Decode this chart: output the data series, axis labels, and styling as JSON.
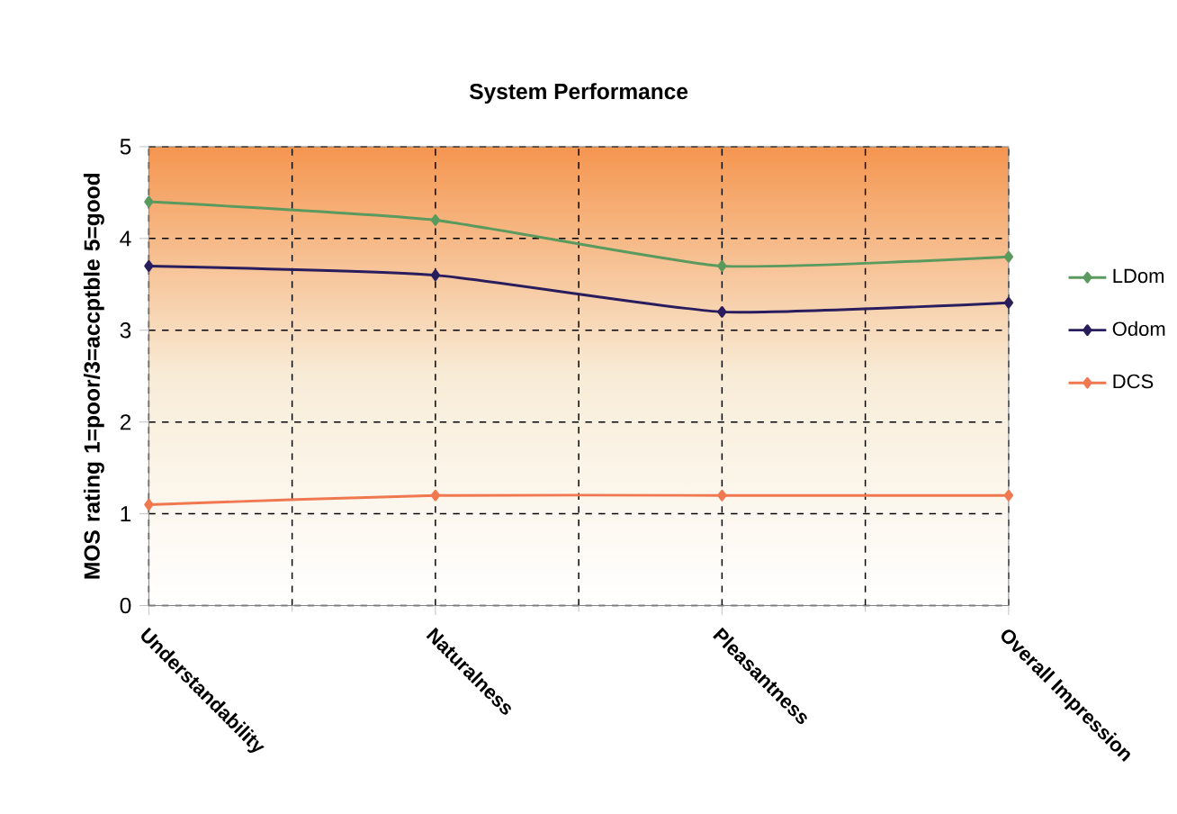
{
  "chart_data": {
    "type": "line",
    "title": "System Performance",
    "ylabel": "MOS rating 1=poor/3=accptble 5=good",
    "categories": [
      "Understandability",
      "Naturalness",
      "Pleasantness",
      "Overall Impression"
    ],
    "series": [
      {
        "name": "LDom",
        "color": "#5a9a5e",
        "values": [
          4.4,
          4.2,
          3.7,
          3.8
        ]
      },
      {
        "name": "Odom",
        "color": "#2a1d5e",
        "values": [
          3.7,
          3.6,
          3.2,
          3.3
        ]
      },
      {
        "name": "DCS",
        "color": "#f07850",
        "values": [
          1.1,
          1.2,
          1.2,
          1.2
        ]
      }
    ],
    "ylim": [
      0,
      5
    ],
    "yticks": [
      0,
      1,
      2,
      3,
      4,
      5
    ],
    "grid": true,
    "legend": "right",
    "marker": "diamond",
    "line_style": "solid"
  }
}
